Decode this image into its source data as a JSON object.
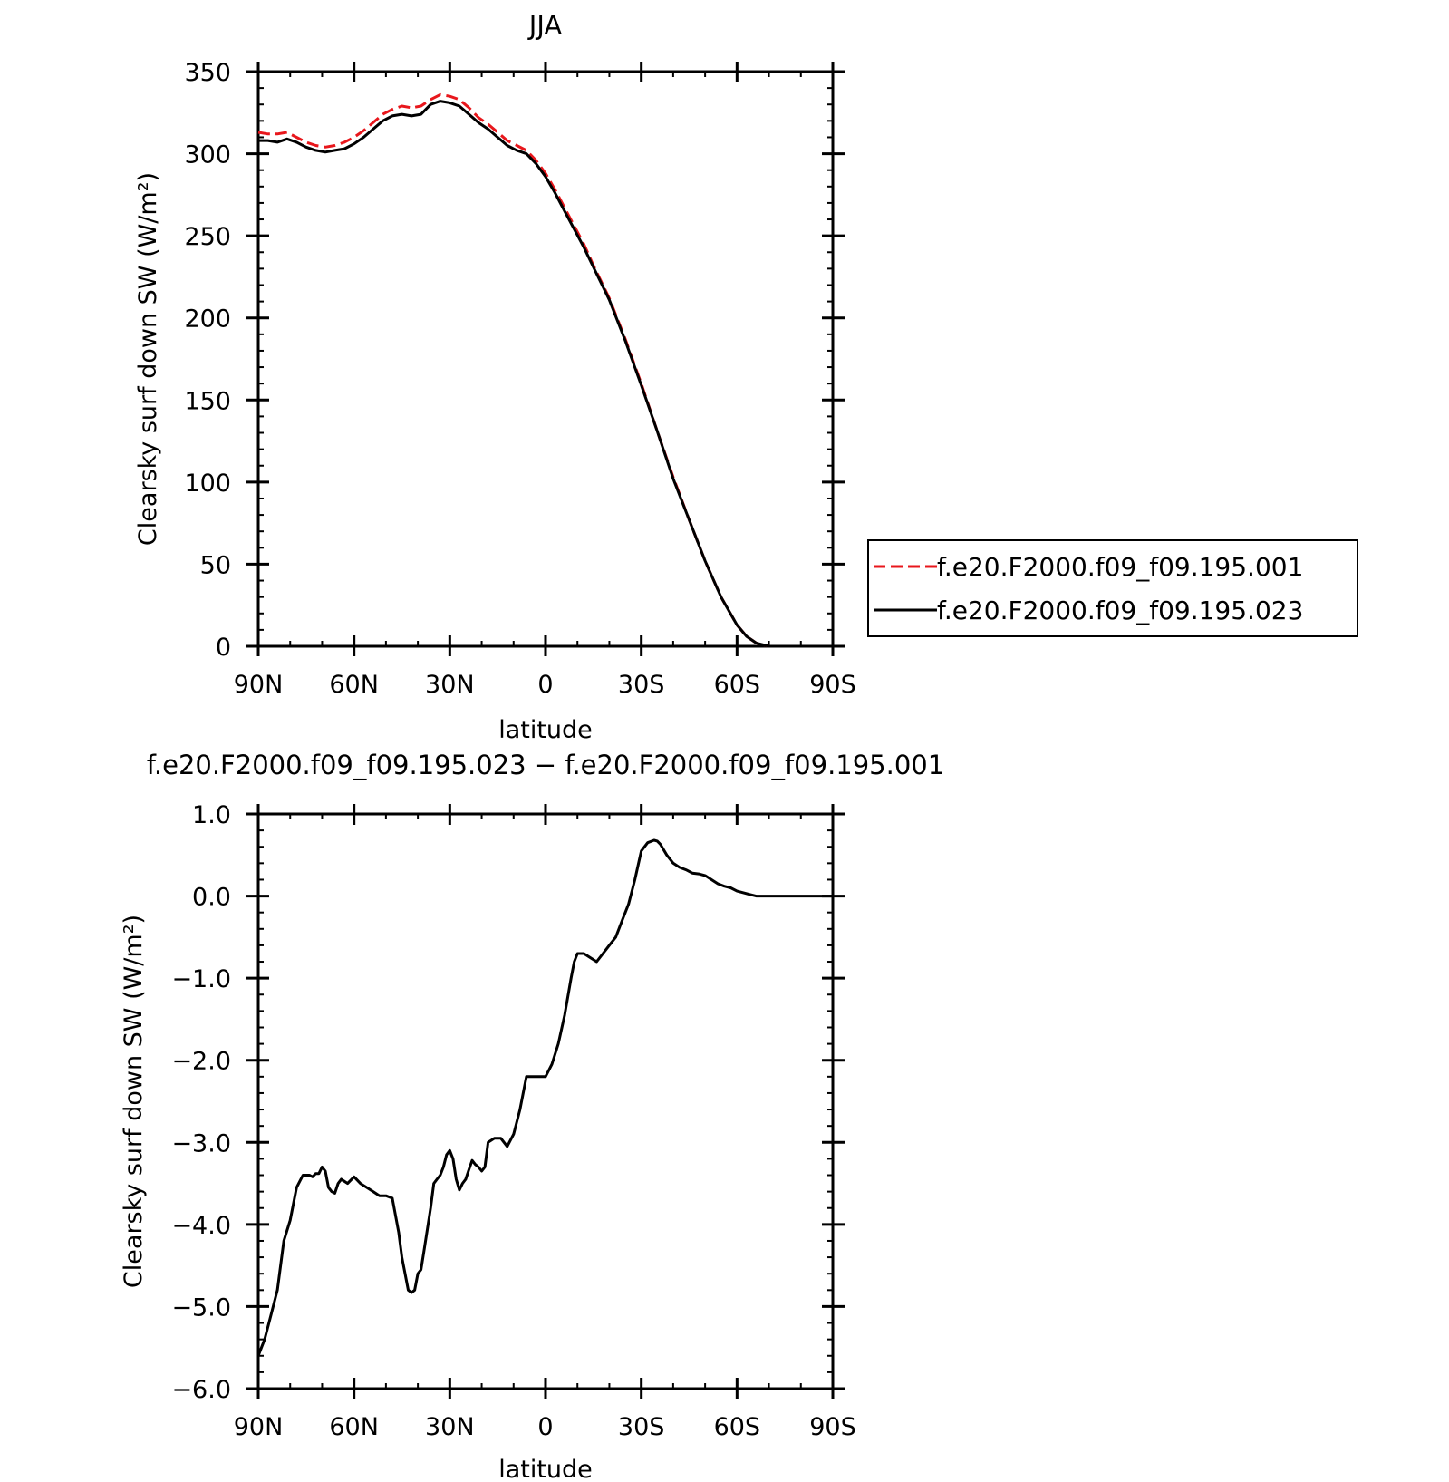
{
  "chart_data": [
    {
      "type": "line",
      "title": "JJA",
      "xlabel": "latitude",
      "ylabel": "Clearsky surf down SW (W/m²)",
      "xlim": [
        90,
        -90
      ],
      "ylim": [
        0,
        350
      ],
      "x_ticks": [
        90,
        60,
        30,
        0,
        -30,
        -60,
        -90
      ],
      "x_tick_labels": [
        "90N",
        "60N",
        "30N",
        "0",
        "30S",
        "60S",
        "90S"
      ],
      "y_ticks": [
        0,
        50,
        100,
        150,
        200,
        250,
        300,
        350
      ],
      "y_tick_labels": [
        "0",
        "50",
        "100",
        "150",
        "200",
        "250",
        "300",
        "350"
      ],
      "legend_position": "right",
      "series": [
        {
          "name": "f.e20.F2000.f09_f09.195.001",
          "color": "#e8171c",
          "dash": "dashed",
          "x": [
            90,
            87,
            84,
            81,
            78,
            75,
            72,
            69,
            66,
            63,
            60,
            57,
            54,
            51,
            48,
            45,
            42,
            39,
            36,
            33,
            30,
            27,
            24,
            21,
            18,
            15,
            12,
            9,
            6,
            3,
            0,
            -3,
            -6,
            -9,
            -12,
            -15,
            -20,
            -25,
            -30,
            -35,
            -40,
            -45,
            -50,
            -55,
            -60,
            -63,
            -66,
            -70,
            -75,
            -80,
            -85,
            -90
          ],
          "y": [
            313,
            312,
            312,
            313,
            310,
            307,
            305,
            304,
            305,
            307,
            310,
            314,
            319,
            324,
            327,
            329,
            328,
            329,
            333,
            336,
            335,
            333,
            328,
            322,
            318,
            313,
            308,
            305,
            302,
            296,
            288,
            278,
            267,
            256,
            245,
            232,
            212,
            187,
            160,
            131,
            103,
            77,
            52,
            30,
            13,
            6,
            2,
            0,
            0,
            0,
            0,
            0
          ]
        },
        {
          "name": "f.e20.F2000.f09_f09.195.023",
          "color": "#000000",
          "dash": "solid",
          "x": [
            90,
            87,
            84,
            81,
            78,
            75,
            72,
            69,
            66,
            63,
            60,
            57,
            54,
            51,
            48,
            45,
            42,
            39,
            36,
            33,
            30,
            27,
            24,
            21,
            18,
            15,
            12,
            9,
            6,
            3,
            0,
            -3,
            -6,
            -9,
            -12,
            -15,
            -20,
            -25,
            -30,
            -35,
            -40,
            -45,
            -50,
            -55,
            -60,
            -63,
            -66,
            -70,
            -75,
            -80,
            -85,
            -90
          ],
          "y": [
            308,
            308,
            307,
            309,
            307,
            304,
            302,
            301,
            302,
            303,
            306,
            310,
            315,
            320,
            323,
            324,
            323,
            324,
            330,
            332,
            331,
            329,
            324,
            319,
            315,
            310,
            305,
            302,
            300,
            294,
            286,
            276,
            265,
            254,
            243,
            231,
            211,
            186,
            159,
            131,
            102,
            77,
            52,
            30,
            13,
            6,
            2,
            0,
            0,
            0,
            0,
            0
          ]
        }
      ]
    },
    {
      "type": "line",
      "title": "f.e20.F2000.f09_f09.195.023 − f.e20.F2000.f09_f09.195.001",
      "xlabel": "latitude",
      "ylabel": "Clearsky surf down SW (W/m²)",
      "xlim": [
        90,
        -90
      ],
      "ylim": [
        -6,
        1
      ],
      "x_ticks": [
        90,
        60,
        30,
        0,
        -30,
        -60,
        -90
      ],
      "x_tick_labels": [
        "90N",
        "60N",
        "30N",
        "0",
        "30S",
        "60S",
        "90S"
      ],
      "y_ticks": [
        1,
        0,
        -1,
        -2,
        -3,
        -4,
        -5,
        -6
      ],
      "y_tick_labels": [
        "1.0",
        "0.0",
        "−1.0",
        "−2.0",
        "−3.0",
        "−4.0",
        "−5.0",
        "−6.0"
      ],
      "series": [
        {
          "color": "#000000",
          "dash": "solid",
          "x": [
            90,
            88,
            86,
            84,
            82,
            80,
            78,
            76,
            74,
            73,
            72,
            71,
            70,
            69,
            68,
            67,
            66,
            65,
            64,
            62,
            60,
            58,
            56,
            54,
            52,
            50,
            48,
            46,
            45,
            44,
            43,
            42,
            41,
            40,
            39,
            38,
            36,
            35,
            34,
            33,
            32,
            31,
            30,
            29,
            28,
            27,
            26,
            25,
            24,
            23,
            22,
            21,
            20,
            19,
            18,
            16,
            14,
            12,
            10,
            8,
            6,
            4,
            2,
            0,
            -2,
            -4,
            -6,
            -8,
            -9,
            -10,
            -11,
            -12,
            -14,
            -16,
            -18,
            -20,
            -22,
            -24,
            -26,
            -28,
            -30,
            -32,
            -34,
            -35,
            -36,
            -38,
            -40,
            -42,
            -44,
            -46,
            -48,
            -50,
            -52,
            -54,
            -56,
            -58,
            -60,
            -62,
            -64,
            -66,
            -68,
            -70,
            -75,
            -80,
            -85,
            -90
          ],
          "y": [
            -5.6,
            -5.4,
            -5.1,
            -4.8,
            -4.2,
            -3.95,
            -3.55,
            -3.4,
            -3.4,
            -3.42,
            -3.38,
            -3.38,
            -3.3,
            -3.35,
            -3.55,
            -3.6,
            -3.62,
            -3.5,
            -3.45,
            -3.5,
            -3.42,
            -3.5,
            -3.55,
            -3.6,
            -3.65,
            -3.65,
            -3.68,
            -4.1,
            -4.4,
            -4.6,
            -4.8,
            -4.83,
            -4.8,
            -4.6,
            -4.55,
            -4.3,
            -3.8,
            -3.5,
            -3.45,
            -3.4,
            -3.3,
            -3.15,
            -3.1,
            -3.2,
            -3.45,
            -3.58,
            -3.5,
            -3.45,
            -3.33,
            -3.22,
            -3.27,
            -3.3,
            -3.35,
            -3.3,
            -3.0,
            -2.95,
            -2.95,
            -3.05,
            -2.9,
            -2.6,
            -2.2,
            -2.2,
            -2.2,
            -2.2,
            -2.05,
            -1.8,
            -1.45,
            -1.0,
            -0.8,
            -0.7,
            -0.7,
            -0.7,
            -0.75,
            -0.8,
            -0.7,
            -0.6,
            -0.5,
            -0.3,
            -0.1,
            0.2,
            0.55,
            0.65,
            0.68,
            0.67,
            0.63,
            0.5,
            0.4,
            0.35,
            0.32,
            0.28,
            0.27,
            0.25,
            0.2,
            0.15,
            0.12,
            0.1,
            0.06,
            0.04,
            0.02,
            0.0,
            0.0,
            0.0,
            0.0,
            0.0,
            0.0,
            0.0
          ]
        }
      ]
    }
  ]
}
